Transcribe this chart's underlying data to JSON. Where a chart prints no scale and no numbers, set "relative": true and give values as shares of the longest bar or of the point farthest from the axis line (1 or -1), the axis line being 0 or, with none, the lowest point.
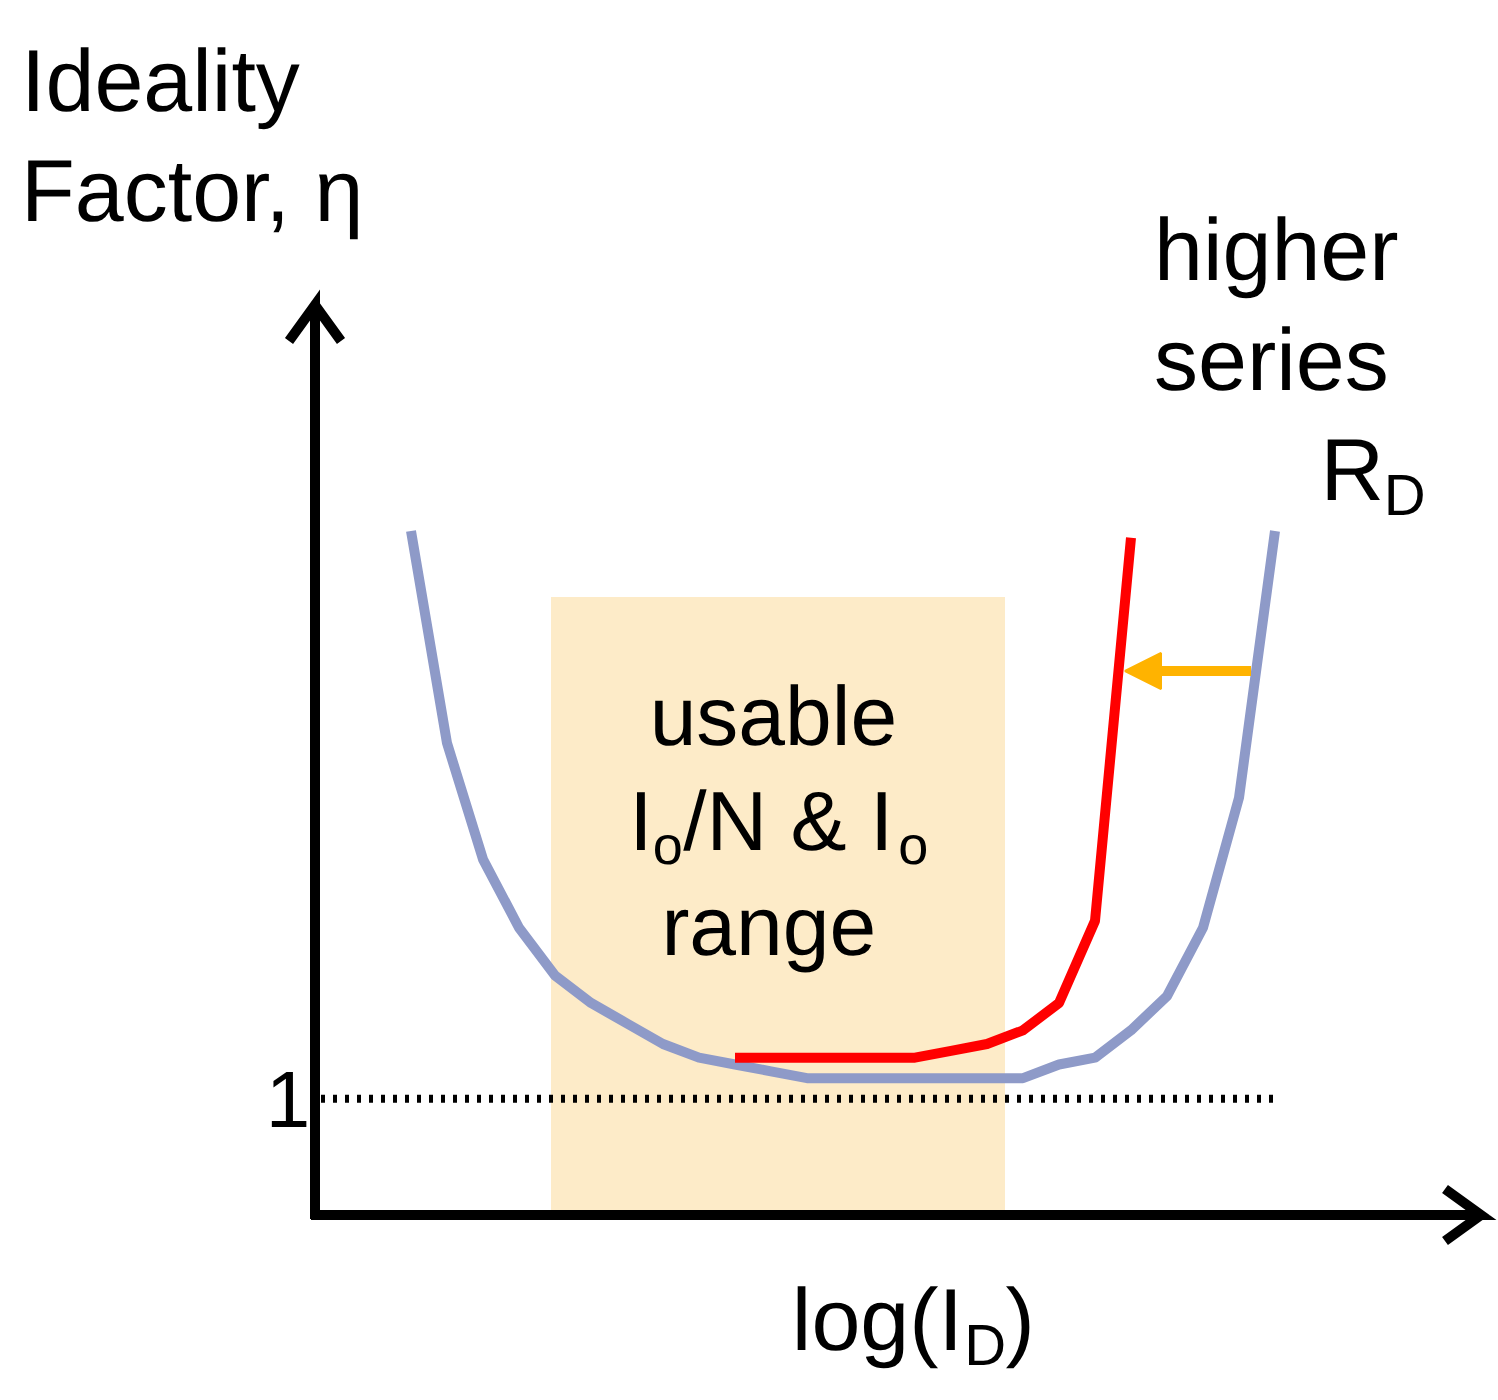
{
  "chart_data": {
    "type": "line",
    "relative": true,
    "categories": [
      null,
      null,
      null,
      null,
      null,
      null,
      null,
      null,
      null,
      null,
      null,
      null,
      null,
      null,
      null,
      null,
      null,
      null,
      null,
      null,
      null,
      null,
      null,
      null,
      null
    ],
    "xlabel": "log(I$_{D}$)",
    "ylabel": "Ideality\nFactor, η",
    "series": [
      {
        "color": "#8e9ac8",
        "values": [
          1.0,
          0.69,
          0.52,
          0.42,
          0.35,
          0.31,
          0.28,
          0.25,
          0.23,
          0.22,
          0.21,
          0.2,
          0.2,
          0.2,
          0.2,
          0.2,
          0.2,
          0.2,
          0.22,
          0.23,
          0.27,
          0.32,
          0.42,
          0.61,
          1.0
        ]
      },
      {
        "color": "#ff0000",
        "values": [
          null,
          null,
          null,
          null,
          null,
          null,
          null,
          null,
          null,
          0.23,
          0.23,
          0.23,
          0.23,
          0.23,
          0.23,
          0.24,
          0.25,
          0.27,
          0.31,
          0.43,
          0.99,
          null,
          null,
          null,
          null
        ]
      }
    ],
    "ref_lines": [
      {
        "axis": "y",
        "value": 0.17,
        "line_style": "dotted",
        "color": "#000000"
      }
    ],
    "annotations": [
      "higher\nseries\nR$_{D}$",
      "usable\nI$_{o}$/N & I$_{o}$\nrange",
      "1"
    ],
    "grid": false,
    "marker": "none",
    "line_style": "solid"
  }
}
